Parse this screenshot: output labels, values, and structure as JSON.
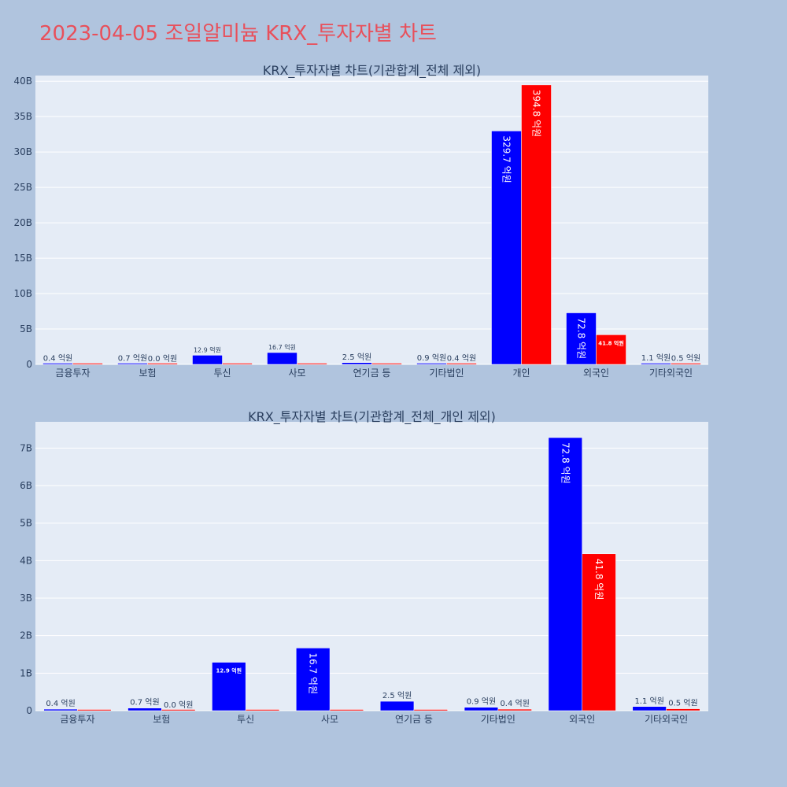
{
  "title": "2023-04-05 조일알미늄 KRX_투자자별 차트",
  "colors": {
    "buy": "#0000ff",
    "sell": "#ff0000",
    "plot_bg": "#e5ecf6",
    "page_bg": "#b0c4de"
  },
  "chart_data": [
    {
      "type": "bar",
      "title": "KRX_투자자별 차트(기관합계_전체 제외)",
      "categories": [
        "금융투자",
        "보험",
        "투신",
        "사모",
        "연기금 등",
        "기타법인",
        "개인",
        "외국인",
        "기타외국인"
      ],
      "yticks": [
        "0",
        "5B",
        "10B",
        "15B",
        "20B",
        "25B",
        "30B",
        "35B",
        "40B"
      ],
      "ytick_values": [
        0,
        5,
        10,
        15,
        20,
        25,
        30,
        35,
        40
      ],
      "ylim": [
        0,
        40.8
      ],
      "grid": true,
      "series": [
        {
          "values": [
            0.04,
            0.07,
            1.29,
            1.67,
            0.25,
            0.09,
            32.97,
            7.28,
            0.11
          ],
          "labels": [
            "0.4 억원",
            "0.7 억원",
            "12.9 억원",
            "16.7 억원",
            "2.5 억원",
            "0.9 억원",
            "329.7 억원",
            "72.8 억원",
            "1.1 억원"
          ]
        },
        {
          "values": [
            0,
            0.0,
            0,
            0,
            0,
            0.04,
            39.48,
            4.18,
            0.05
          ],
          "labels": [
            null,
            "0.0 억원",
            null,
            null,
            null,
            "0.4 억원",
            "394.8 억원",
            "41.8 억원",
            "0.5 억원"
          ]
        }
      ]
    },
    {
      "type": "bar",
      "title": "KRX_투자자별 차트(기관합계_전체_개인 제외)",
      "categories": [
        "금융투자",
        "보험",
        "투신",
        "사모",
        "연기금 등",
        "기타법인",
        "외국인",
        "기타외국인"
      ],
      "yticks": [
        "0",
        "1B",
        "2B",
        "3B",
        "4B",
        "5B",
        "6B",
        "7B"
      ],
      "ytick_values": [
        0,
        1,
        2,
        3,
        4,
        5,
        6,
        7
      ],
      "ylim": [
        0,
        7.7
      ],
      "grid": true,
      "series": [
        {
          "values": [
            0.04,
            0.07,
            1.29,
            1.67,
            0.25,
            0.09,
            7.28,
            0.11
          ],
          "labels": [
            "0.4 억원",
            "0.7 억원",
            "12.9 억원",
            "16.7 억원",
            "2.5 억원",
            "0.9 억원",
            "72.8 억원",
            "1.1 억원"
          ]
        },
        {
          "values": [
            0,
            0.0,
            0,
            0,
            0,
            0.04,
            4.18,
            0.05
          ],
          "labels": [
            null,
            "0.0 억원",
            null,
            null,
            null,
            "0.4 억원",
            "41.8 억원",
            "0.5 억원"
          ]
        }
      ]
    }
  ]
}
